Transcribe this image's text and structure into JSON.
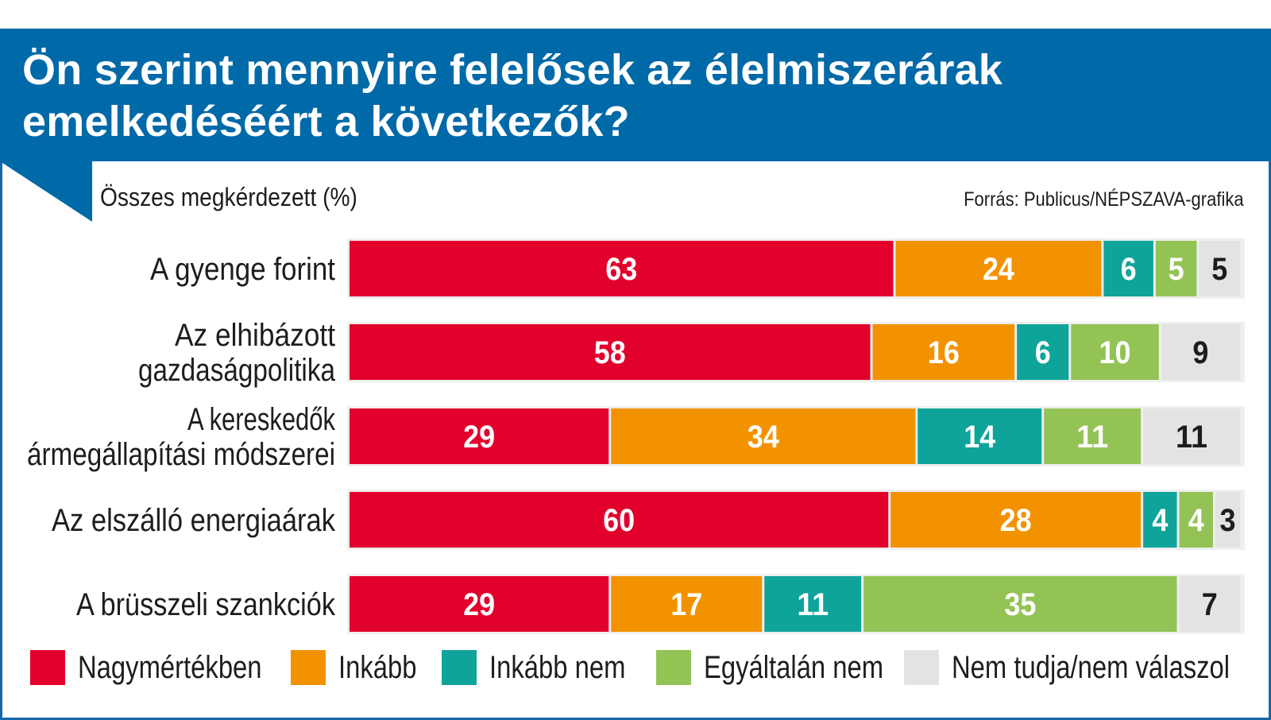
{
  "chart_data": {
    "type": "bar",
    "orientation": "horizontal",
    "stacked": true,
    "title": "Ön szerint mennyire felelősek az élelmiszerárak emelkedéséért a következők?",
    "subtitle": "Összes megkérdezett (%)",
    "source": "Forrás: Publicus/NÉPSZAVA-grafika",
    "categories": [
      [
        "A gyenge forint"
      ],
      [
        "Az elhibázott",
        "gazdaságpolitika"
      ],
      [
        "A kereskedők",
        "ármegállapítási módszerei"
      ],
      [
        "Az elszálló energiaárak"
      ],
      [
        "A brüsszeli szankciók"
      ]
    ],
    "series": [
      {
        "name": "Nagymértékben",
        "color": "#e2002c",
        "label_color": "#ffffff",
        "values": [
          63,
          58,
          29,
          60,
          29
        ]
      },
      {
        "name": "Inkább",
        "color": "#f39200",
        "label_color": "#ffffff",
        "values": [
          24,
          16,
          34,
          28,
          17
        ]
      },
      {
        "name": "Inkább nem",
        "color": "#0ea49a",
        "label_color": "#ffffff",
        "values": [
          6,
          6,
          14,
          4,
          11
        ]
      },
      {
        "name": "Egyáltalán nem",
        "color": "#93c355",
        "label_color": "#ffffff",
        "values": [
          5,
          10,
          11,
          4,
          35
        ]
      },
      {
        "name": "Nem tudja/nem válaszol",
        "color": "#e3e3e3",
        "label_color": "#1d1d1b",
        "values": [
          5,
          9,
          11,
          3,
          7
        ]
      }
    ],
    "legend_position": "bottom",
    "grid": false
  }
}
